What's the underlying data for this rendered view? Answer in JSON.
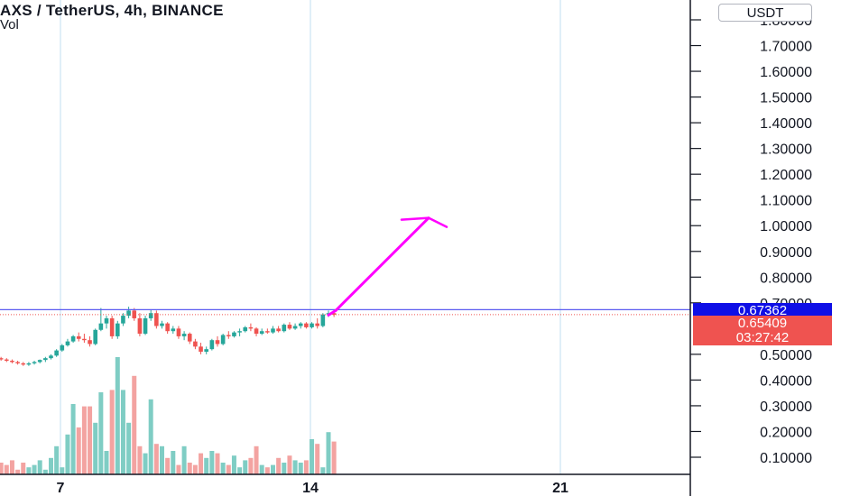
{
  "header": {
    "title": "AXS / TetherUS, 4h, BINANCE",
    "volume_label": "Vol",
    "currency_button": "USDT"
  },
  "price_axis": {
    "labels": [
      "1.80000",
      "1.70000",
      "1.60000",
      "1.50000",
      "1.40000",
      "1.30000",
      "1.20000",
      "1.10000",
      "1.00000",
      "0.90000",
      "0.80000",
      "0.70000",
      "0.50000",
      "0.40000",
      "0.30000",
      "0.20000",
      "0.10000"
    ]
  },
  "time_axis": {
    "labels": [
      "7",
      "14",
      "21"
    ]
  },
  "price_tags": {
    "horizontal_line_price": "0.67362",
    "last_price": "0.65409",
    "countdown": "03:27:42"
  },
  "colors": {
    "up": "#26a69a",
    "down": "#ef5350",
    "volume_up": "#7fcdc4",
    "volume_down": "#f3a3a1",
    "horizontal_line": "#5b5bf0",
    "arrow": "#ff00ff",
    "grid": "#d6eaf5"
  },
  "chart_data": {
    "type": "candlestick",
    "symbol": "AXS / TetherUS",
    "interval": "4h",
    "exchange": "BINANCE",
    "ylim": [
      0.05,
      1.83
    ],
    "y_ticks": [
      0.1,
      0.2,
      0.3,
      0.4,
      0.5,
      0.7,
      0.8,
      0.9,
      1.0,
      1.1,
      1.2,
      1.3,
      1.4,
      1.5,
      1.6,
      1.7,
      1.8
    ],
    "x_ticks": [
      "7",
      "14",
      "21"
    ],
    "horizontal_line": 0.67362,
    "last_price": 0.65409,
    "candles_ohlc": [
      [
        0.48,
        0.49,
        0.47,
        0.485
      ],
      [
        0.485,
        0.49,
        0.475,
        0.48
      ],
      [
        0.48,
        0.485,
        0.47,
        0.475
      ],
      [
        0.475,
        0.48,
        0.465,
        0.47
      ],
      [
        0.47,
        0.475,
        0.46,
        0.465
      ],
      [
        0.465,
        0.47,
        0.455,
        0.46
      ],
      [
        0.46,
        0.47,
        0.455,
        0.465
      ],
      [
        0.465,
        0.475,
        0.46,
        0.47
      ],
      [
        0.47,
        0.48,
        0.465,
        0.478
      ],
      [
        0.478,
        0.49,
        0.47,
        0.485
      ],
      [
        0.485,
        0.5,
        0.48,
        0.495
      ],
      [
        0.495,
        0.52,
        0.49,
        0.515
      ],
      [
        0.515,
        0.54,
        0.51,
        0.535
      ],
      [
        0.535,
        0.56,
        0.53,
        0.55
      ],
      [
        0.55,
        0.575,
        0.545,
        0.57
      ],
      [
        0.57,
        0.585,
        0.55,
        0.56
      ],
      [
        0.56,
        0.58,
        0.545,
        0.555
      ],
      [
        0.555,
        0.57,
        0.53,
        0.54
      ],
      [
        0.54,
        0.6,
        0.535,
        0.595
      ],
      [
        0.595,
        0.68,
        0.59,
        0.62
      ],
      [
        0.62,
        0.65,
        0.6,
        0.64
      ],
      [
        0.64,
        0.65,
        0.56,
        0.57
      ],
      [
        0.57,
        0.63,
        0.56,
        0.62
      ],
      [
        0.62,
        0.66,
        0.61,
        0.65
      ],
      [
        0.65,
        0.685,
        0.64,
        0.67
      ],
      [
        0.67,
        0.68,
        0.63,
        0.64
      ],
      [
        0.64,
        0.66,
        0.57,
        0.58
      ],
      [
        0.58,
        0.65,
        0.575,
        0.64
      ],
      [
        0.64,
        0.675,
        0.63,
        0.66
      ],
      [
        0.66,
        0.67,
        0.6,
        0.61
      ],
      [
        0.61,
        0.63,
        0.6,
        0.62
      ],
      [
        0.62,
        0.625,
        0.58,
        0.59
      ],
      [
        0.59,
        0.61,
        0.58,
        0.6
      ],
      [
        0.6,
        0.61,
        0.56,
        0.57
      ],
      [
        0.57,
        0.59,
        0.555,
        0.58
      ],
      [
        0.58,
        0.585,
        0.54,
        0.55
      ],
      [
        0.55,
        0.56,
        0.52,
        0.53
      ],
      [
        0.53,
        0.545,
        0.5,
        0.51
      ],
      [
        0.51,
        0.53,
        0.5,
        0.52
      ],
      [
        0.52,
        0.56,
        0.515,
        0.555
      ],
      [
        0.555,
        0.57,
        0.53,
        0.54
      ],
      [
        0.54,
        0.58,
        0.535,
        0.575
      ],
      [
        0.575,
        0.59,
        0.56,
        0.57
      ],
      [
        0.57,
        0.59,
        0.565,
        0.585
      ],
      [
        0.585,
        0.6,
        0.57,
        0.59
      ],
      [
        0.59,
        0.61,
        0.585,
        0.605
      ],
      [
        0.605,
        0.62,
        0.59,
        0.6
      ],
      [
        0.6,
        0.605,
        0.57,
        0.58
      ],
      [
        0.58,
        0.6,
        0.575,
        0.59
      ],
      [
        0.59,
        0.6,
        0.58,
        0.585
      ],
      [
        0.585,
        0.61,
        0.58,
        0.6
      ],
      [
        0.6,
        0.61,
        0.585,
        0.59
      ],
      [
        0.59,
        0.62,
        0.585,
        0.615
      ],
      [
        0.615,
        0.625,
        0.595,
        0.6
      ],
      [
        0.6,
        0.62,
        0.595,
        0.61
      ],
      [
        0.61,
        0.625,
        0.6,
        0.62
      ],
      [
        0.62,
        0.625,
        0.6,
        0.605
      ],
      [
        0.605,
        0.625,
        0.6,
        0.62
      ],
      [
        0.62,
        0.64,
        0.6,
        0.61
      ],
      [
        0.61,
        0.66,
        0.605,
        0.655
      ],
      [
        0.655,
        0.67,
        0.645,
        0.66
      ],
      [
        0.66,
        0.67,
        0.645,
        0.654
      ]
    ],
    "volume_relative": [
      0.03,
      0.05,
      0.04,
      0.06,
      0.02,
      0.05,
      0.03,
      0.04,
      0.06,
      0.02,
      0.07,
      0.12,
      0.03,
      0.17,
      0.3,
      0.2,
      0.29,
      0.29,
      0.22,
      0.35,
      0.1,
      0.36,
      0.5,
      0.36,
      0.22,
      0.42,
      0.12,
      0.09,
      0.32,
      0.13,
      0.12,
      0.07,
      0.1,
      0.04,
      0.12,
      0.05,
      0.04,
      0.09,
      0.07,
      0.1,
      0.09,
      0.05,
      0.04,
      0.08,
      0.03,
      0.06,
      0.07,
      0.12,
      0.04,
      0.03,
      0.04,
      0.07,
      0.05,
      0.08,
      0.06,
      0.05,
      0.06,
      0.15,
      0.13,
      0.03,
      0.18,
      0.14
    ],
    "annotation_arrow": {
      "from_price": 0.67,
      "to_price": 1.03
    }
  }
}
